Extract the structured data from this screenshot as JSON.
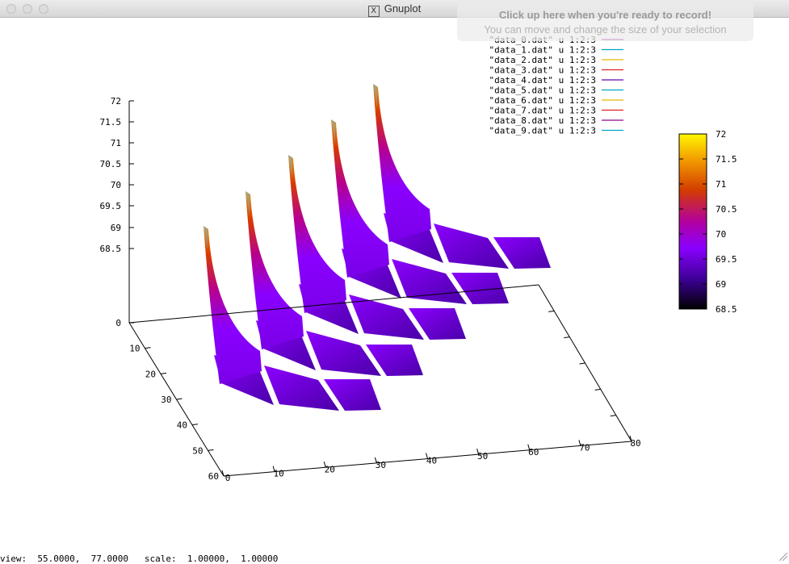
{
  "window": {
    "title": "Gnuplot",
    "x_icon": "X"
  },
  "recorder_overlay": {
    "line1": "Click up here when you're ready to record!",
    "line2": "You can move and change the size of your selection"
  },
  "status": {
    "view_label": "view:",
    "view_values": "55.0000,  77.0000",
    "scale_label": "scale:",
    "scale_values": "1.00000,  1.00000"
  },
  "chart_data": {
    "type": "surface3d",
    "title": "",
    "z_axis": {
      "ticks": [
        "72",
        "71.5",
        "71",
        "70.5",
        "70",
        "69.5",
        "69",
        "68.5",
        "0"
      ]
    },
    "x_axis": {
      "ticks": [
        "0",
        "10",
        "20",
        "30",
        "40",
        "50",
        "60",
        "70",
        "80"
      ],
      "range": [
        0,
        80
      ]
    },
    "y_axis": {
      "ticks": [
        "10",
        "20",
        "30",
        "40",
        "50",
        "60"
      ],
      "range": [
        0,
        60
      ]
    },
    "colorbar": {
      "ticks": [
        "72",
        "71.5",
        "71",
        "70.5",
        "70",
        "69.5",
        "69",
        "68.5"
      ],
      "range": [
        68.5,
        72
      ]
    },
    "legend": [
      {
        "label": "\"data_0.dat\" u 1:2:3",
        "color": "#94008a"
      },
      {
        "label": "\"data_1.dat\" u 1:2:3",
        "color": "#00a4c7"
      },
      {
        "label": "\"data_2.dat\" u 1:2:3",
        "color": "#e8b800"
      },
      {
        "label": "\"data_3.dat\" u 1:2:3",
        "color": "#e02020"
      },
      {
        "label": "\"data_4.dat\" u 1:2:3",
        "color": "#6a00b0"
      },
      {
        "label": "\"data_5.dat\" u 1:2:3",
        "color": "#00a4c7"
      },
      {
        "label": "\"data_6.dat\" u 1:2:3",
        "color": "#e8b800"
      },
      {
        "label": "\"data_7.dat\" u 1:2:3",
        "color": "#e02020"
      },
      {
        "label": "\"data_8.dat\" u 1:2:3",
        "color": "#94008a"
      },
      {
        "label": "\"data_9.dat\" u 1:2:3",
        "color": "#00a4c7"
      }
    ],
    "palette": [
      "#000000",
      "#3d0095",
      "#8a00ff",
      "#b3009e",
      "#d33d00",
      "#f29a00",
      "#fff700"
    ],
    "legend_position": "top-right",
    "grid": false
  }
}
